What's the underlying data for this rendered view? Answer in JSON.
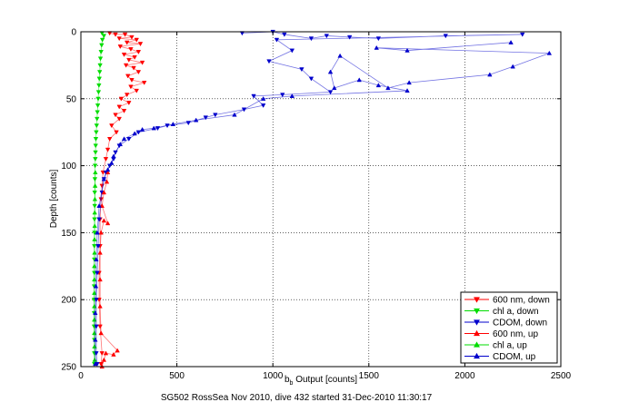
{
  "chart_data": {
    "type": "scatter",
    "title": "",
    "xlabel_main": "b",
    "xlabel_sub": "b",
    "xlabel_rest": " Output [counts]",
    "ylabel": "Depth [counts]",
    "caption": "SG502 RossSea Nov 2010, dive 432 started 31-Dec-2010 11:30:17",
    "xlim": [
      0,
      2500
    ],
    "ylim": [
      0,
      250
    ],
    "y_reversed": true,
    "grid": true,
    "legend_position": "bottom-right",
    "xticks": [
      "0",
      "500",
      "1000",
      "1500",
      "2000",
      "2500"
    ],
    "yticks": [
      "0",
      "50",
      "100",
      "150",
      "200",
      "250"
    ],
    "series": [
      {
        "name": "600 nm, down",
        "color": "#ff0000",
        "marker": "triangle-down",
        "points": [
          [
            150,
            1
          ],
          [
            180,
            2
          ],
          [
            230,
            2
          ],
          [
            265,
            4
          ],
          [
            200,
            5
          ],
          [
            290,
            6
          ],
          [
            240,
            8
          ],
          [
            310,
            9
          ],
          [
            205,
            11
          ],
          [
            260,
            13
          ],
          [
            300,
            15
          ],
          [
            225,
            17
          ],
          [
            280,
            19
          ],
          [
            250,
            21
          ],
          [
            320,
            23
          ],
          [
            235,
            25
          ],
          [
            275,
            27
          ],
          [
            300,
            30
          ],
          [
            245,
            33
          ],
          [
            265,
            36
          ],
          [
            330,
            38
          ],
          [
            260,
            41
          ],
          [
            290,
            44
          ],
          [
            240,
            47
          ],
          [
            210,
            50
          ],
          [
            250,
            53
          ],
          [
            200,
            56
          ],
          [
            225,
            59
          ],
          [
            180,
            62
          ],
          [
            200,
            65
          ],
          [
            160,
            70
          ],
          [
            185,
            75
          ],
          [
            150,
            80
          ],
          [
            140,
            88
          ],
          [
            130,
            95
          ],
          [
            115,
            105
          ],
          [
            110,
            115
          ],
          [
            105,
            125
          ],
          [
            100,
            140
          ],
          [
            100,
            160
          ],
          [
            95,
            180
          ],
          [
            95,
            200
          ],
          [
            100,
            220
          ],
          [
            110,
            240
          ],
          [
            105,
            248
          ]
        ]
      },
      {
        "name": "chl a, down",
        "color": "#00dd00",
        "marker": "triangle-down",
        "points": [
          [
            110,
            1
          ],
          [
            120,
            3
          ],
          [
            112,
            6
          ],
          [
            108,
            10
          ],
          [
            105,
            15
          ],
          [
            102,
            20
          ],
          [
            100,
            25
          ],
          [
            98,
            30
          ],
          [
            96,
            35
          ],
          [
            94,
            40
          ],
          [
            92,
            45
          ],
          [
            90,
            50
          ],
          [
            88,
            55
          ],
          [
            86,
            60
          ],
          [
            84,
            65
          ],
          [
            82,
            70
          ],
          [
            80,
            75
          ],
          [
            78,
            80
          ],
          [
            77,
            85
          ],
          [
            76,
            90
          ],
          [
            75,
            95
          ],
          [
            74,
            100
          ],
          [
            73,
            110
          ],
          [
            72,
            120
          ],
          [
            72,
            130
          ],
          [
            71,
            140
          ],
          [
            71,
            150
          ],
          [
            70,
            160
          ],
          [
            70,
            170
          ],
          [
            70,
            180
          ],
          [
            69,
            190
          ],
          [
            69,
            200
          ],
          [
            69,
            210
          ],
          [
            69,
            220
          ],
          [
            70,
            230
          ],
          [
            70,
            240
          ],
          [
            70,
            248
          ]
        ]
      },
      {
        "name": "CDOM, down",
        "color": "#0000cc",
        "marker": "triangle-down",
        "points": [
          [
            840,
            1
          ],
          [
            1000,
            0
          ],
          [
            1060,
            2
          ],
          [
            1200,
            5
          ],
          [
            1280,
            3
          ],
          [
            1400,
            4
          ],
          [
            1550,
            5
          ],
          [
            1900,
            3
          ],
          [
            2300,
            2
          ],
          [
            1020,
            6
          ],
          [
            1100,
            14
          ],
          [
            980,
            22
          ],
          [
            1150,
            28
          ],
          [
            1200,
            35
          ],
          [
            1300,
            45
          ],
          [
            1050,
            47
          ],
          [
            900,
            48
          ],
          [
            950,
            55
          ],
          [
            850,
            58
          ],
          [
            700,
            62
          ],
          [
            650,
            64
          ],
          [
            560,
            68
          ],
          [
            450,
            70
          ],
          [
            400,
            72
          ],
          [
            300,
            75
          ],
          [
            250,
            80
          ],
          [
            200,
            85
          ],
          [
            180,
            90
          ],
          [
            170,
            95
          ],
          [
            150,
            100
          ],
          [
            130,
            105
          ],
          [
            120,
            110
          ],
          [
            110,
            120
          ],
          [
            95,
            140
          ],
          [
            90,
            160
          ],
          [
            85,
            180
          ],
          [
            80,
            200
          ],
          [
            80,
            220
          ],
          [
            80,
            240
          ],
          [
            85,
            248
          ]
        ]
      },
      {
        "name": "600 nm, up",
        "color": "#ff0000",
        "marker": "triangle-up",
        "points": [
          [
            140,
            105
          ],
          [
            135,
            112
          ],
          [
            120,
            120
          ],
          [
            110,
            130
          ],
          [
            140,
            143
          ],
          [
            120,
            141
          ],
          [
            105,
            150
          ],
          [
            100,
            165
          ],
          [
            100,
            185
          ],
          [
            100,
            205
          ],
          [
            105,
            225
          ],
          [
            190,
            238
          ],
          [
            170,
            241
          ],
          [
            130,
            240
          ],
          [
            120,
            245
          ],
          [
            110,
            250
          ]
        ]
      },
      {
        "name": "chl a, up",
        "color": "#00dd00",
        "marker": "triangle-up",
        "points": [
          [
            75,
            105
          ],
          [
            74,
            115
          ],
          [
            73,
            125
          ],
          [
            72,
            135
          ],
          [
            72,
            145
          ],
          [
            71,
            155
          ],
          [
            71,
            165
          ],
          [
            70,
            175
          ],
          [
            70,
            185
          ],
          [
            70,
            195
          ],
          [
            70,
            205
          ],
          [
            70,
            215
          ],
          [
            70,
            225
          ],
          [
            71,
            235
          ],
          [
            72,
            245
          ]
        ]
      },
      {
        "name": "CDOM, up",
        "color": "#0000cc",
        "marker": "triangle-up",
        "points": [
          [
            2240,
            8
          ],
          [
            1700,
            14
          ],
          [
            1540,
            12
          ],
          [
            2440,
            16
          ],
          [
            2250,
            26
          ],
          [
            2130,
            32
          ],
          [
            1710,
            38
          ],
          [
            1600,
            42
          ],
          [
            1350,
            18
          ],
          [
            1300,
            30
          ],
          [
            1320,
            42
          ],
          [
            1450,
            36
          ],
          [
            1550,
            40
          ],
          [
            1700,
            44
          ],
          [
            1100,
            48
          ],
          [
            950,
            50
          ],
          [
            800,
            62
          ],
          [
            600,
            66
          ],
          [
            480,
            69
          ],
          [
            380,
            72
          ],
          [
            320,
            73
          ],
          [
            280,
            76
          ],
          [
            225,
            80
          ],
          [
            205,
            84
          ],
          [
            170,
            93
          ],
          [
            160,
            98
          ],
          [
            140,
            103
          ],
          [
            120,
            110
          ],
          [
            95,
            130
          ],
          [
            85,
            150
          ],
          [
            80,
            170
          ],
          [
            78,
            190
          ],
          [
            75,
            210
          ],
          [
            75,
            230
          ],
          [
            75,
            248
          ]
        ]
      }
    ]
  }
}
